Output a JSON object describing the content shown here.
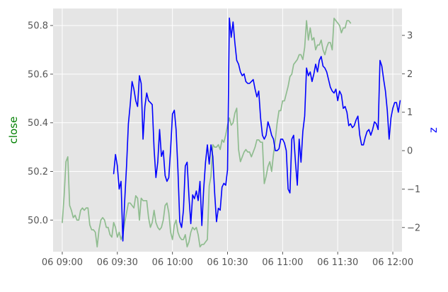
{
  "chart_data": {
    "type": "line",
    "style": "ggplot",
    "grid": true,
    "background": "#E5E5E5",
    "x_ticks": [
      "06 09:00",
      "06 09:30",
      "06 10:00",
      "06 10:30",
      "06 11:00",
      "06 11:30",
      "06 12:00"
    ],
    "xlim": [
      "06 08:55",
      "06 12:05"
    ],
    "left_axis": {
      "label": "close",
      "label_color": "#008000",
      "ylim": [
        49.87,
        50.87
      ],
      "ticks": [
        "50.0",
        "50.2",
        "50.4",
        "50.6",
        "50.8"
      ]
    },
    "right_axis": {
      "label": "z",
      "label_color": "#0000FF",
      "ylim": [
        -2.63,
        3.7
      ],
      "ticks": [
        "−2",
        "−1",
        "0",
        "1",
        "2",
        "3"
      ]
    },
    "series": [
      {
        "axis": "left",
        "color": "#8FBC8F",
        "start": "06 09:00",
        "step_minutes": 1,
        "values": [
          49.99,
          50.1,
          50.24,
          50.26,
          50.06,
          50.04,
          50.01,
          50.02,
          50.0,
          50.0,
          50.04,
          50.05,
          50.04,
          50.05,
          50.05,
          49.98,
          49.96,
          49.96,
          49.95,
          49.89,
          49.96,
          50.0,
          50.01,
          50.0,
          49.97,
          49.97,
          49.94,
          49.93,
          49.99,
          49.97,
          49.93,
          49.95,
          49.92,
          49.94,
          49.99,
          50.03,
          50.07,
          50.07,
          50.06,
          50.05,
          50.1,
          50.09,
          50.0,
          50.09,
          50.08,
          50.08,
          50.08,
          50.01,
          49.97,
          49.99,
          50.04,
          49.99,
          49.97,
          49.96,
          49.97,
          50.0,
          50.06,
          50.07,
          50.03,
          49.95,
          49.92,
          49.98,
          50.0,
          49.95,
          49.93,
          49.92,
          49.92,
          49.94,
          49.89,
          49.91,
          49.95,
          49.97,
          49.96,
          49.97,
          49.94,
          49.89,
          49.9,
          49.9,
          49.91,
          49.92,
          50.14,
          50.18,
          50.31,
          50.3,
          50.3,
          50.31,
          50.29,
          50.33,
          50.32,
          50.35,
          50.39,
          50.42,
          50.39,
          50.4,
          50.44,
          50.46,
          50.29,
          50.24,
          50.26,
          50.28,
          50.29,
          50.28,
          50.28,
          50.26,
          50.28,
          50.3,
          50.33,
          50.33,
          50.32,
          50.32,
          50.15,
          50.18,
          50.22,
          50.24,
          50.2,
          50.27,
          50.33,
          50.4,
          50.45,
          50.45,
          50.49,
          50.49,
          50.52,
          50.55,
          50.59,
          50.6,
          50.64,
          50.65,
          50.66,
          50.68,
          50.68,
          50.66,
          50.71,
          50.82,
          50.74,
          50.79,
          50.74,
          50.75,
          50.7,
          50.72,
          50.72,
          50.74,
          50.7,
          50.68,
          50.71,
          50.73,
          50.73,
          50.7,
          50.83,
          50.82,
          50.81,
          50.8,
          50.77,
          50.79,
          50.79,
          50.82,
          50.82,
          50.81
        ]
      },
      {
        "axis": "right",
        "color": "#0000FF",
        "start": "06 09:28",
        "step_minutes": 1,
        "values": [
          -0.6,
          -0.1,
          -0.4,
          -1.0,
          -0.8,
          -2.35,
          -1.3,
          -0.4,
          0.7,
          1.2,
          1.8,
          1.6,
          1.3,
          1.15,
          1.95,
          1.75,
          0.3,
          1.15,
          1.5,
          1.3,
          1.25,
          1.2,
          0.05,
          -0.7,
          -0.3,
          0.55,
          -0.15,
          0.0,
          -0.65,
          -0.8,
          -0.7,
          0.05,
          0.95,
          1.05,
          0.55,
          -0.5,
          -1.85,
          -2.0,
          -1.55,
          -0.4,
          -0.3,
          -1.2,
          -1.9,
          -1.15,
          -1.25,
          -1.05,
          -1.3,
          -0.8,
          -1.95,
          -1.0,
          -0.3,
          0.15,
          -0.35,
          0.15,
          -0.15,
          -1.1,
          -1.85,
          -1.5,
          -1.55,
          -0.95,
          -0.85,
          -0.9,
          -0.5,
          3.45,
          2.95,
          3.35,
          2.8,
          2.35,
          2.25,
          2.05,
          1.95,
          2.0,
          1.8,
          1.75,
          1.75,
          1.8,
          1.85,
          1.6,
          1.4,
          1.55,
          0.85,
          0.4,
          0.3,
          0.4,
          0.75,
          0.6,
          0.4,
          0.3,
          0.0,
          0.0,
          0.05,
          0.3,
          0.3,
          0.2,
          0.0,
          -1.0,
          -1.1,
          0.3,
          0.4,
          -0.3,
          -0.9,
          0.3,
          -0.3,
          0.5,
          0.9,
          2.15,
          1.95,
          2.05,
          1.8,
          2.0,
          2.25,
          2.05,
          2.35,
          2.45,
          2.2,
          2.15,
          2.05,
          1.85,
          1.65,
          1.55,
          1.5,
          1.6,
          1.3,
          1.55,
          1.45,
          1.1,
          1.15,
          1.0,
          0.65,
          0.7,
          0.6,
          0.65,
          0.8,
          0.9,
          0.4,
          0.15,
          0.15,
          0.35,
          0.5,
          0.55,
          0.4,
          0.55,
          0.75,
          0.7,
          0.55,
          2.35,
          2.2,
          1.85,
          1.55,
          1.05,
          0.3,
          0.85,
          1.1,
          1.25,
          1.25,
          1.0,
          1.3
        ]
      }
    ]
  }
}
